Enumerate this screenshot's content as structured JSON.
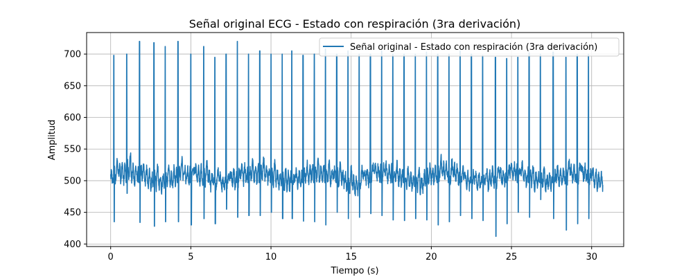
{
  "chart_data": {
    "type": "line",
    "title": "Señal original ECG - Estado con respiración (3ra derivación)",
    "xlabel": "Tiempo (s)",
    "ylabel": "Amplitud",
    "xlim": [
      -1.5,
      32.0
    ],
    "ylim": [
      396,
      734
    ],
    "xticks": [
      0,
      5,
      10,
      15,
      20,
      25,
      30
    ],
    "yticks": [
      400,
      450,
      500,
      550,
      600,
      650,
      700
    ],
    "grid": true,
    "legend_position": "top-right",
    "series": [
      {
        "name": "Señal original - Estado con respiración (3ra derivación)",
        "color": "#1f77b4",
        "x_range": [
          0,
          30.7
        ],
        "baseline": 505,
        "beat_times": [
          0.2,
          1.0,
          1.8,
          2.7,
          3.4,
          4.2,
          5.0,
          5.8,
          6.5,
          7.2,
          7.9,
          8.6,
          9.3,
          10.0,
          10.7,
          11.3,
          12.0,
          12.7,
          13.4,
          14.1,
          14.8,
          15.5,
          16.2,
          16.9,
          17.6,
          18.3,
          19.0,
          19.7,
          20.4,
          21.1,
          21.8,
          22.5,
          23.2,
          24.0,
          24.7,
          25.4,
          26.1,
          26.8,
          27.6,
          28.4,
          29.1,
          29.8
        ],
        "r_peaks": [
          698,
          700,
          720,
          718,
          712,
          720,
          700,
          712,
          695,
          700,
          720,
          700,
          705,
          700,
          700,
          705,
          698,
          700,
          708,
          700,
          705,
          700,
          700,
          705,
          700,
          700,
          700,
          703,
          700,
          700,
          705,
          700,
          698,
          695,
          693,
          695,
          702,
          700,
          703,
          695,
          700,
          700
        ],
        "s_troughs": [
          435,
          480,
          434,
          428,
          435,
          435,
          430,
          440,
          432,
          455,
          442,
          445,
          445,
          450,
          440,
          440,
          436,
          435,
          430,
          450,
          440,
          442,
          448,
          445,
          438,
          437,
          440,
          438,
          430,
          435,
          445,
          440,
          437,
          412,
          432,
          450,
          442,
          470,
          440,
          422,
          432,
          440
        ],
        "noise_range": [
          470,
          550
        ]
      }
    ]
  }
}
